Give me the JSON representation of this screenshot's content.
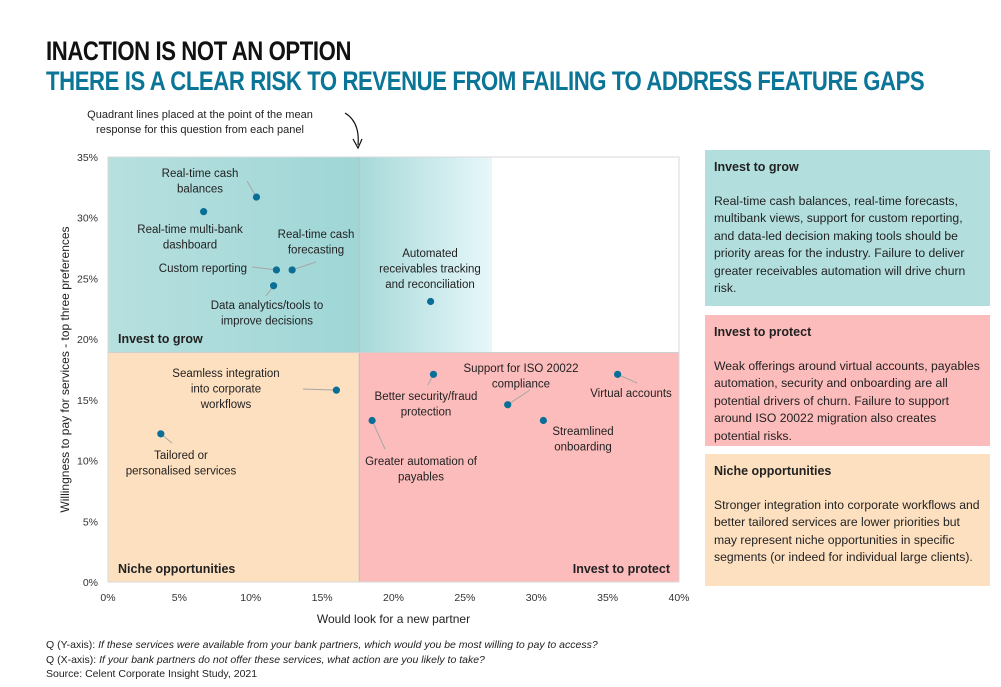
{
  "title": "INACTION IS NOT AN OPTION",
  "subtitle": "THERE IS A CLEAR RISK TO REVENUE FROM FAILING TO ADDRESS FEATURE GAPS",
  "annotation": "Quadrant lines placed at the point of the mean response for this question from each panel",
  "chart_data": {
    "type": "scatter",
    "xlabel": "Would look for a new partner",
    "ylabel": "Willingness to pay for services - top three preferences",
    "xlim": [
      0,
      40
    ],
    "ylim": [
      0,
      35
    ],
    "x_ticks": [
      "0%",
      "5%",
      "10%",
      "15%",
      "20%",
      "25%",
      "30%",
      "35%",
      "40%"
    ],
    "y_ticks": [
      "0%",
      "5%",
      "10%",
      "15%",
      "20%",
      "25%",
      "30%",
      "35%"
    ],
    "quadrant_lines": {
      "x": 17.6,
      "y": 18.9
    },
    "quadrant_labels": [
      "Invest to grow",
      "Invest to protect",
      "Niche opportunities"
    ],
    "point_color": "#0a6f96",
    "points": [
      {
        "label": [
          "Real-time cash",
          "balances"
        ],
        "x": 10.4,
        "y": 31.7
      },
      {
        "label": [
          "Real-time multi-bank",
          "dashboard"
        ],
        "x": 6.7,
        "y": 30.5
      },
      {
        "label": [
          "Custom reporting"
        ],
        "x": 11.8,
        "y": 25.7
      },
      {
        "label": [
          "Real-time cash",
          "forecasting"
        ],
        "x": 12.9,
        "y": 25.7
      },
      {
        "label": [
          "Data analytics/tools to",
          "improve decisions"
        ],
        "x": 11.6,
        "y": 24.4
      },
      {
        "label": [
          "Automated",
          "receivables tracking",
          "and reconciliation"
        ],
        "x": 22.6,
        "y": 23.1
      },
      {
        "label": [
          "Seamless integration",
          "into corporate",
          "workflows"
        ],
        "x": 16.0,
        "y": 15.8
      },
      {
        "label": [
          "Tailored or",
          "personalised services"
        ],
        "x": 3.7,
        "y": 12.2
      },
      {
        "label": [
          "Better security/fraud",
          "protection"
        ],
        "x": 22.8,
        "y": 17.1
      },
      {
        "label": [
          "Support for ISO 20022",
          "compliance"
        ],
        "x": 28.0,
        "y": 14.6
      },
      {
        "label": [
          "Virtual accounts"
        ],
        "x": 35.7,
        "y": 17.1
      },
      {
        "label": [
          "Streamlined",
          "onboarding"
        ],
        "x": 30.5,
        "y": 13.3
      },
      {
        "label": [
          "Greater automation of",
          "payables"
        ],
        "x": 18.5,
        "y": 13.3
      }
    ]
  },
  "colors": {
    "grow": "#b2dfde",
    "protect": "#fdbcbc",
    "niche": "#fde0c0",
    "accent": "#0a7597"
  },
  "panels": [
    {
      "title": "Invest to grow",
      "text": "Real-time cash balances, real-time forecasts, multibank views, support for custom reporting, and data-led decision making tools should be priority areas for the industry. Failure to deliver greater receivables automation will drive churn risk."
    },
    {
      "title": "Invest to protect",
      "text": "Weak offerings around virtual accounts, payables automation, security and onboarding are all potential drivers of churn. Failure to support around ISO 20022 migration also creates potential risks."
    },
    {
      "title": "Niche opportunities",
      "text": "Stronger integration into corporate workflows and better tailored services are lower priorities but may represent niche opportunities in specific segments (or indeed for individual large clients)."
    }
  ],
  "footer": {
    "q_y_prefix": "Q (Y-axis): ",
    "q_y": "If these services were available from your bank partners, which would you be most willing to pay to access?",
    "q_x_prefix": "Q (X-axis): ",
    "q_x": "If your bank partners do not offer these services, what action are you likely to take?",
    "source": "Source: Celent Corporate Insight Study, 2021"
  }
}
